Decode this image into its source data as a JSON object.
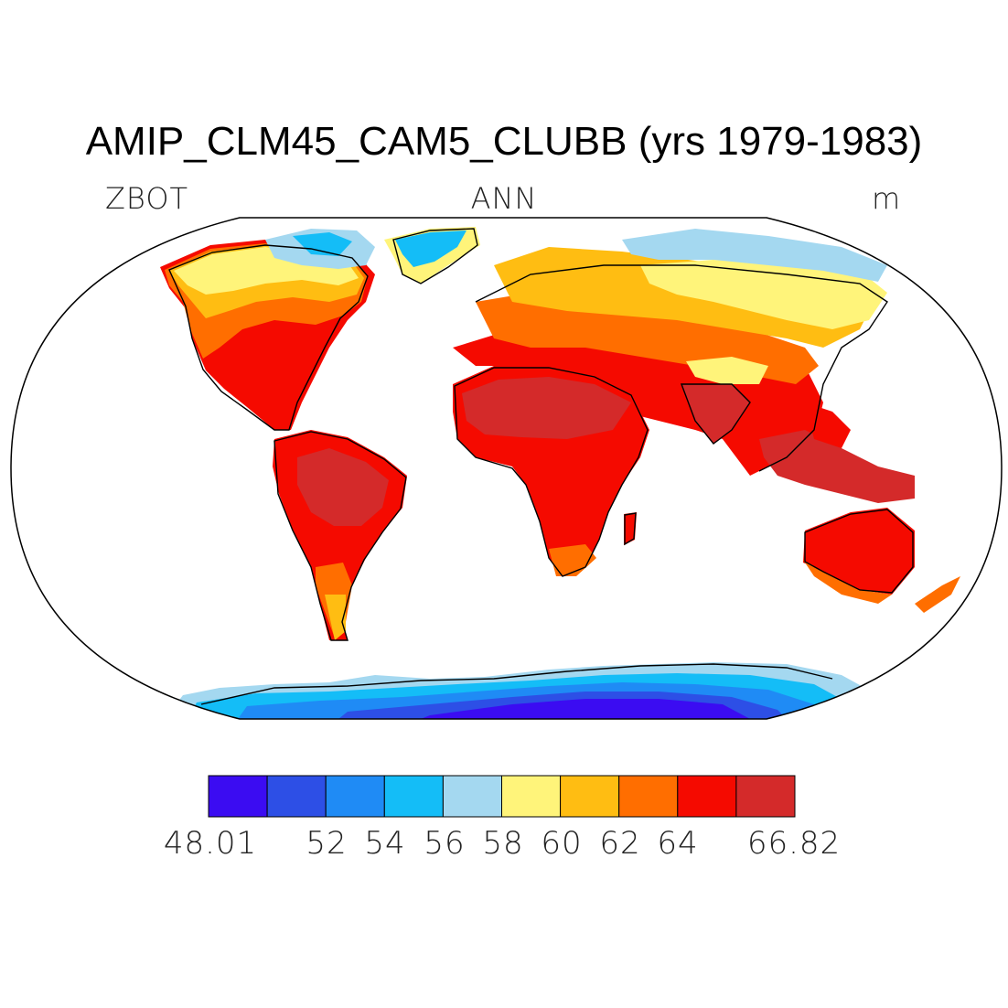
{
  "title": "AMIP_CLM45_CAM5_CLUBB (yrs 1979-1983)",
  "subtitle_left": "ZBOT",
  "subtitle_center": "ANN",
  "subtitle_right": "m",
  "colorbar": {
    "colors": [
      "#3b0cf2",
      "#2d4fe6",
      "#1f8bf5",
      "#14bdf7",
      "#a4d8f0",
      "#fff47a",
      "#ffbd12",
      "#ff6e00",
      "#f50a00",
      "#d42a2a"
    ],
    "labels": [
      "48.01",
      "52",
      "54",
      "56",
      "58",
      "60",
      "62",
      "64",
      "66.82"
    ]
  }
}
